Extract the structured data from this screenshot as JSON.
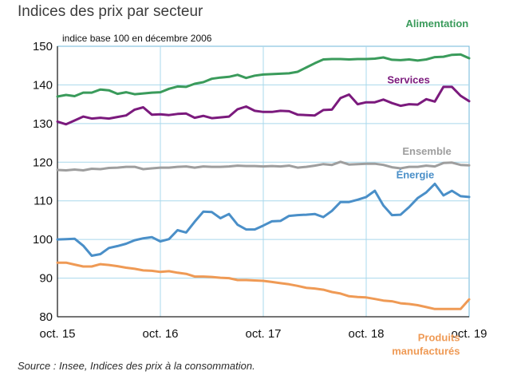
{
  "header": {
    "title": "Indices des prix par secteur",
    "source": "Source : Insee, Indices des prix à la consommation."
  },
  "chart_data": {
    "type": "line",
    "title": "Indices des prix par secteur",
    "ylabel": "indice base 100 en décembre 2006",
    "ylim": [
      80,
      150
    ],
    "yticks": [
      80,
      90,
      100,
      110,
      120,
      130,
      140,
      150
    ],
    "xlim": [
      0,
      48
    ],
    "xticks": [
      {
        "x": 0,
        "label": "oct. 15"
      },
      {
        "x": 12,
        "label": "oct. 16"
      },
      {
        "x": 24,
        "label": "oct. 17"
      },
      {
        "x": 36,
        "label": "oct. 18"
      },
      {
        "x": 48,
        "label": "oct. 19"
      }
    ],
    "grid": true,
    "series": [
      {
        "name": "Alimentation",
        "color": "#3a9b5b",
        "label_anchor": 47,
        "label_dy": 7.5,
        "values": [
          137.0,
          137.4,
          137.1,
          138.0,
          138.0,
          138.8,
          138.6,
          137.7,
          138.1,
          137.6,
          137.8,
          138.0,
          138.1,
          139.0,
          139.6,
          139.5,
          140.3,
          140.7,
          141.6,
          141.9,
          142.1,
          142.6,
          141.8,
          142.4,
          142.7,
          142.8,
          142.9,
          143.0,
          143.4,
          144.5,
          145.6,
          146.6,
          146.7,
          146.7,
          146.6,
          146.7,
          146.7,
          146.8,
          147.1,
          146.5,
          146.4,
          146.6,
          146.3,
          146.6,
          147.2,
          147.3,
          147.8,
          147.9,
          146.9
        ]
      },
      {
        "name": "Services",
        "color": "#7b1a7d",
        "label_anchor": 42.5,
        "label_dy": 4.5,
        "values": [
          130.5,
          129.8,
          130.8,
          131.8,
          131.3,
          131.5,
          131.3,
          131.7,
          132.1,
          133.6,
          134.2,
          132.3,
          132.4,
          132.2,
          132.5,
          132.6,
          131.5,
          132.0,
          131.4,
          131.6,
          131.8,
          133.7,
          134.4,
          133.3,
          133.0,
          133.0,
          133.3,
          133.2,
          132.3,
          132.2,
          132.1,
          133.5,
          133.6,
          136.6,
          137.5,
          135.0,
          135.5,
          135.5,
          136.2,
          135.3,
          134.6,
          135.0,
          134.9,
          136.3,
          135.7,
          139.5,
          139.5,
          137.2,
          135.8
        ]
      },
      {
        "name": "Ensemble",
        "color": "#9e9e9e",
        "label_anchor": 45,
        "label_dy": 2.5,
        "values": [
          118.0,
          117.9,
          118.1,
          117.9,
          118.3,
          118.2,
          118.5,
          118.6,
          118.8,
          118.8,
          118.2,
          118.4,
          118.6,
          118.6,
          118.8,
          118.9,
          118.6,
          118.9,
          118.8,
          118.8,
          118.9,
          119.1,
          119.0,
          119.0,
          118.9,
          119.0,
          118.9,
          119.1,
          118.6,
          118.8,
          119.1,
          119.5,
          119.3,
          120.1,
          119.4,
          119.5,
          119.6,
          119.6,
          119.3,
          118.7,
          118.4,
          118.8,
          118.8,
          119.1,
          118.9,
          119.8,
          119.9,
          119.3,
          119.2
        ]
      },
      {
        "name": "Énergie",
        "color": "#4a8fc8",
        "label_anchor": 43,
        "label_dy": 4,
        "values": [
          100.0,
          100.1,
          100.2,
          98.4,
          95.8,
          96.2,
          97.8,
          98.3,
          98.9,
          99.8,
          100.3,
          100.6,
          99.5,
          100.1,
          102.4,
          101.8,
          104.6,
          107.2,
          107.1,
          105.5,
          106.6,
          103.8,
          102.6,
          102.6,
          103.6,
          104.7,
          104.8,
          106.1,
          106.3,
          106.4,
          106.6,
          105.8,
          107.4,
          109.7,
          109.7,
          110.3,
          111.0,
          112.6,
          108.8,
          106.3,
          106.4,
          108.4,
          110.7,
          112.2,
          114.4,
          111.4,
          112.6,
          111.2,
          111.0
        ]
      },
      {
        "name": "Produits manufacturés",
        "color": "#ef9a55",
        "label_anchor": 46,
        "label_dy": 10,
        "values": [
          94.0,
          94.0,
          93.5,
          93.0,
          93.0,
          93.6,
          93.4,
          93.1,
          92.7,
          92.4,
          92.0,
          91.9,
          91.6,
          91.8,
          91.4,
          91.1,
          90.4,
          90.4,
          90.3,
          90.1,
          90.0,
          89.5,
          89.5,
          89.4,
          89.3,
          89.0,
          88.7,
          88.4,
          88.0,
          87.5,
          87.3,
          87.0,
          86.4,
          86.0,
          85.3,
          85.1,
          85.0,
          84.6,
          84.2,
          84.0,
          83.5,
          83.3,
          83.0,
          82.5,
          82.0,
          82.0,
          82.0,
          82.0,
          84.5
        ]
      }
    ]
  }
}
